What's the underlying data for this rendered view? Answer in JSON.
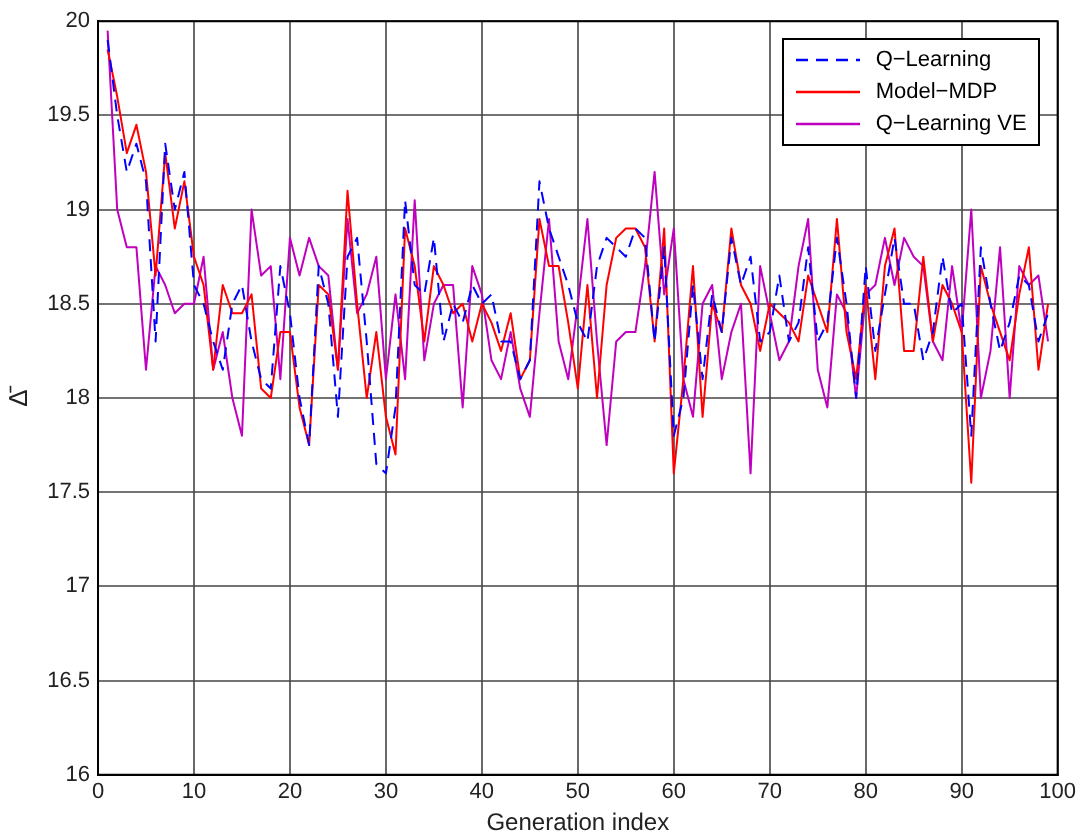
{
  "chart_data": {
    "type": "line",
    "xlabel": "Generation index",
    "ylabel": "Δ̄",
    "x": [
      1,
      2,
      3,
      4,
      5,
      6,
      7,
      8,
      9,
      10,
      11,
      12,
      13,
      14,
      15,
      16,
      17,
      18,
      19,
      20,
      21,
      22,
      23,
      24,
      25,
      26,
      27,
      28,
      29,
      30,
      31,
      32,
      33,
      34,
      35,
      36,
      37,
      38,
      39,
      40,
      41,
      42,
      43,
      44,
      45,
      46,
      47,
      48,
      49,
      50,
      51,
      52,
      53,
      54,
      55,
      56,
      57,
      58,
      59,
      60,
      61,
      62,
      63,
      64,
      65,
      66,
      67,
      68,
      69,
      70,
      71,
      72,
      73,
      74,
      75,
      76,
      77,
      78,
      79,
      80,
      81,
      82,
      83,
      84,
      85,
      86,
      87,
      88,
      89,
      90,
      91,
      92,
      93,
      94,
      95,
      96,
      97,
      98,
      99
    ],
    "xlim": [
      0,
      100
    ],
    "xticks": [
      0,
      10,
      20,
      30,
      40,
      50,
      60,
      70,
      80,
      90,
      100
    ],
    "ylim": [
      16,
      20
    ],
    "yticks": [
      16,
      16.5,
      17,
      17.5,
      18,
      18.5,
      19,
      19.5,
      20
    ],
    "grid": true,
    "legend": "top right",
    "marker": "none",
    "series": [
      {
        "name": "Q−Learning",
        "color": "#0000ff",
        "line_style": "dashed",
        "values": [
          19.9,
          19.5,
          19.2,
          19.35,
          19.15,
          18.3,
          19.35,
          19.0,
          19.2,
          18.6,
          18.5,
          18.3,
          18.15,
          18.5,
          18.6,
          18.3,
          18.1,
          18.05,
          18.7,
          18.45,
          18.0,
          17.75,
          18.7,
          18.5,
          17.9,
          18.75,
          18.85,
          18.3,
          17.65,
          17.6,
          17.95,
          19.05,
          18.6,
          18.55,
          18.85,
          18.3,
          18.5,
          18.4,
          18.6,
          18.5,
          18.55,
          18.3,
          18.3,
          18.1,
          18.2,
          19.15,
          18.9,
          18.75,
          18.6,
          18.4,
          18.3,
          18.7,
          18.85,
          18.8,
          18.75,
          18.9,
          18.85,
          18.3,
          18.8,
          17.8,
          18.0,
          18.6,
          18.1,
          18.55,
          18.35,
          18.85,
          18.6,
          18.75,
          18.3,
          18.35,
          18.65,
          18.3,
          18.4,
          18.8,
          18.3,
          18.4,
          18.85,
          18.5,
          18.0,
          18.7,
          18.25,
          18.55,
          18.85,
          18.5,
          18.5,
          18.2,
          18.35,
          18.75,
          18.45,
          18.5,
          17.8,
          18.8,
          18.5,
          18.25,
          18.4,
          18.65,
          18.6,
          18.3,
          18.45
        ]
      },
      {
        "name": "Model−MDP",
        "color": "#ff0000",
        "line_style": "solid",
        "values": [
          19.85,
          19.6,
          19.3,
          19.45,
          19.2,
          18.65,
          19.3,
          18.9,
          19.15,
          18.75,
          18.6,
          18.15,
          18.6,
          18.45,
          18.45,
          18.55,
          18.05,
          18.0,
          18.35,
          18.35,
          17.95,
          17.75,
          18.6,
          18.55,
          18.15,
          19.1,
          18.5,
          18.0,
          18.35,
          17.9,
          17.7,
          18.9,
          18.7,
          18.3,
          18.7,
          18.6,
          18.45,
          18.5,
          18.3,
          18.5,
          18.4,
          18.25,
          18.45,
          18.1,
          18.2,
          18.95,
          18.7,
          18.7,
          18.4,
          18.05,
          18.6,
          18.0,
          18.6,
          18.85,
          18.9,
          18.9,
          18.8,
          18.3,
          18.9,
          17.6,
          18.1,
          18.7,
          17.9,
          18.5,
          18.35,
          18.9,
          18.6,
          18.5,
          18.25,
          18.5,
          18.45,
          18.4,
          18.3,
          18.65,
          18.5,
          18.35,
          18.95,
          18.35,
          18.1,
          18.6,
          18.1,
          18.7,
          18.9,
          18.25,
          18.25,
          18.75,
          18.3,
          18.6,
          18.5,
          18.35,
          17.55,
          18.7,
          18.5,
          18.35,
          18.2,
          18.55,
          18.8,
          18.15,
          18.5
        ]
      },
      {
        "name": "Q−Learning VE",
        "color": "#bf00bf",
        "line_style": "solid",
        "values": [
          19.95,
          19.0,
          18.8,
          18.8,
          18.15,
          18.7,
          18.6,
          18.45,
          18.5,
          18.5,
          18.75,
          18.15,
          18.35,
          18.0,
          17.8,
          19.0,
          18.65,
          18.7,
          18.1,
          18.85,
          18.65,
          18.85,
          18.7,
          18.65,
          18.15,
          18.95,
          18.45,
          18.55,
          18.75,
          18.1,
          18.55,
          18.1,
          19.05,
          18.2,
          18.5,
          18.6,
          18.6,
          17.95,
          18.7,
          18.55,
          18.2,
          18.1,
          18.35,
          18.05,
          17.9,
          18.45,
          18.95,
          18.3,
          18.1,
          18.5,
          18.95,
          18.3,
          17.75,
          18.3,
          18.35,
          18.35,
          18.7,
          19.2,
          18.55,
          18.9,
          18.1,
          17.9,
          18.5,
          18.6,
          18.1,
          18.35,
          18.5,
          17.6,
          18.7,
          18.45,
          18.2,
          18.3,
          18.7,
          18.95,
          18.15,
          17.95,
          18.55,
          18.45,
          18.0,
          18.55,
          18.6,
          18.85,
          18.6,
          18.85,
          18.75,
          18.7,
          18.3,
          18.2,
          18.7,
          18.35,
          19.0,
          18.0,
          18.25,
          18.8,
          18.0,
          18.7,
          18.6,
          18.65,
          18.3
        ]
      }
    ]
  }
}
